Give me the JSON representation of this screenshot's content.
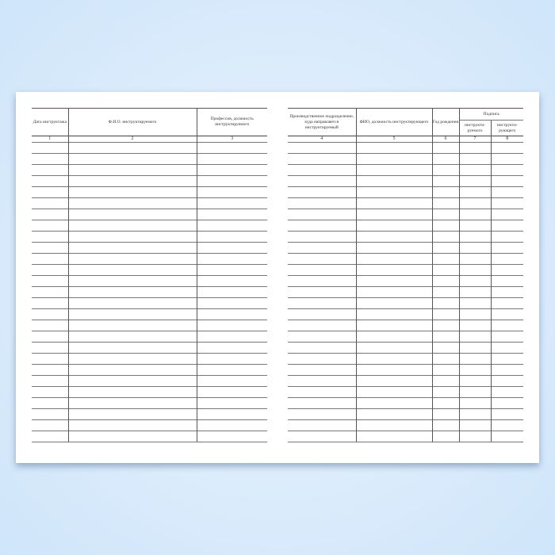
{
  "left_page": {
    "headers": [
      "Дата инструктажа",
      "Ф.И.О. инструктируемого",
      "Профессия, должность инструктируемого"
    ],
    "numbers": [
      "1",
      "2",
      "3"
    ]
  },
  "right_page": {
    "headers": [
      "Производственное подразделение, куда направляется инструктируемый",
      "ФИО, должность инструктирующего",
      "Год рождения"
    ],
    "signature_header": "Подпись",
    "signature_sub": [
      "инструкти-руемого",
      "инструкти-рующего"
    ],
    "numbers": [
      "4",
      "5",
      "6",
      "7",
      "8"
    ]
  },
  "blank_rows": 27
}
